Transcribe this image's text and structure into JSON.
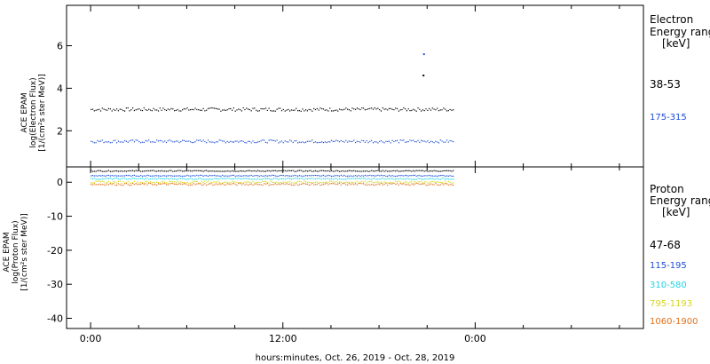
{
  "chart_data": [
    {
      "type": "scatter",
      "panel": "electron",
      "ylabel_lines": [
        "ACE EPAM",
        "log(Electron Flux)",
        "[1/(cm²s ster MeV)]"
      ],
      "ylim": [
        0.3,
        7.9
      ],
      "yticks": [
        2,
        4,
        6
      ],
      "legend_title": [
        "Electron",
        "Energy ranges",
        "[keV]"
      ],
      "series": [
        {
          "name": "38-53",
          "color": "#000000",
          "level": 3.0,
          "jitter": 0.08
        },
        {
          "name": "175-315",
          "color": "#1f4fd6",
          "level": 1.5,
          "jitter": 0.07
        }
      ],
      "outliers": [
        {
          "x": 20.75,
          "y": 5.6,
          "color": "#1f4fd6"
        },
        {
          "x": 20.72,
          "y": 4.6,
          "color": "#000000"
        }
      ]
    },
    {
      "type": "scatter",
      "panel": "proton",
      "ylabel_lines": [
        "ACE EPAM",
        "log(Proton Flux)",
        "[1/(cm²s ster MeV)]"
      ],
      "ylim": [
        -43,
        4.5
      ],
      "yticks": [
        0,
        -10,
        -20,
        -30,
        -40
      ],
      "legend_title": [
        "Proton",
        "Energy ranges",
        "[keV]"
      ],
      "series": [
        {
          "name": "47-68",
          "color": "#000000",
          "level": 3.3,
          "jitter": 0.15
        },
        {
          "name": "115-195",
          "color": "#1f4fd6",
          "level": 1.9,
          "jitter": 0.15
        },
        {
          "name": "310-580",
          "color": "#22d3e6",
          "level": 1.0,
          "jitter": 0.2
        },
        {
          "name": "795-1193",
          "color": "#d6d61a",
          "level": 0.0,
          "jitter": 0.3
        },
        {
          "name": "1060-1900",
          "color": "#e0701a",
          "level": -0.6,
          "jitter": 0.3
        }
      ]
    }
  ],
  "x_axis": {
    "range_hours": [
      -1.5,
      34.5
    ],
    "data_end_hours": 22.7,
    "ticks": [
      {
        "hour": 0,
        "label": "0:00"
      },
      {
        "hour": 12,
        "label": "12:00"
      },
      {
        "hour": 24,
        "label": "0:00"
      }
    ],
    "minor_tick_hours": 3,
    "label": "hours:minutes, Oct. 26, 2019 - Oct. 28, 2019"
  }
}
